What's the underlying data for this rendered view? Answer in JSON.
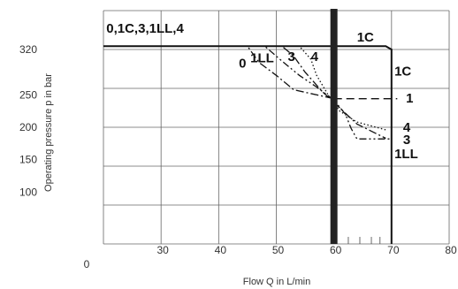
{
  "chart_data": {
    "type": "line",
    "xlabel": "Flow Q in L/min",
    "ylabel": "Operating pressure p in bar",
    "xlim": [
      20,
      80
    ],
    "ylim": [
      20,
      380
    ],
    "origin_label": "0",
    "x_ticks": [
      {
        "value": 30,
        "label": "30"
      },
      {
        "value": 40,
        "label": "40"
      },
      {
        "value": 50,
        "label": "50"
      },
      {
        "value": 60,
        "label": "60"
      },
      {
        "value": 70,
        "label": "70"
      },
      {
        "value": 80,
        "label": "80"
      }
    ],
    "y_ticks": [
      {
        "value": 100,
        "label": "100"
      },
      {
        "value": 150,
        "label": "150"
      },
      {
        "value": 200,
        "label": "200"
      },
      {
        "value": 250,
        "label": "250"
      },
      {
        "value": 320,
        "label": "320"
      }
    ],
    "grid": true,
    "vertical_marker": {
      "x": 60
    },
    "series": [
      {
        "name": "1C",
        "style": "solid",
        "points": [
          [
            20,
            325
          ],
          [
            69,
            325
          ],
          [
            70,
            320
          ],
          [
            70,
            20
          ]
        ]
      },
      {
        "name": "0",
        "style": "dashdot",
        "points": [
          [
            20,
            325
          ],
          [
            45,
            325
          ],
          [
            47,
            300
          ],
          [
            50,
            280
          ],
          [
            53,
            258
          ],
          [
            60,
            244
          ]
        ]
      },
      {
        "name": "1",
        "style": "dashed",
        "points": [
          [
            60,
            244
          ],
          [
            71,
            244
          ]
        ]
      },
      {
        "name": "1LL",
        "style": "dashdotdot",
        "points": [
          [
            20,
            325
          ],
          [
            48,
            325
          ],
          [
            51,
            302
          ],
          [
            54,
            280
          ],
          [
            57,
            262
          ],
          [
            60,
            242
          ],
          [
            62,
            220
          ],
          [
            63,
            198
          ],
          [
            64,
            182
          ],
          [
            70,
            182
          ]
        ]
      },
      {
        "name": "3",
        "style": "dashdot",
        "points": [
          [
            20,
            325
          ],
          [
            51,
            325
          ],
          [
            53,
            310
          ],
          [
            55,
            285
          ],
          [
            58,
            255
          ],
          [
            61,
            230
          ],
          [
            64,
            205
          ],
          [
            69,
            183
          ]
        ]
      },
      {
        "name": "4",
        "style": "dotted",
        "points": [
          [
            20,
            325
          ],
          [
            54,
            325
          ],
          [
            56,
            305
          ],
          [
            57,
            280
          ],
          [
            59,
            250
          ],
          [
            61,
            225
          ],
          [
            64,
            208
          ],
          [
            69,
            196
          ]
        ]
      }
    ],
    "annotations": [
      {
        "text": "0,1C,3,1LL,4",
        "x": 20.5,
        "y": 346
      },
      {
        "text": "1C",
        "x": 64,
        "y": 332
      },
      {
        "text": "1C",
        "x": 70.5,
        "y": 280
      },
      {
        "text": "0",
        "x": 43.5,
        "y": 292
      },
      {
        "text": "1LL",
        "x": 45.5,
        "y": 300
      },
      {
        "text": "3",
        "x": 52,
        "y": 302
      },
      {
        "text": "4",
        "x": 56,
        "y": 302
      },
      {
        "text": "1",
        "x": 72.5,
        "y": 238
      },
      {
        "text": "4",
        "x": 72,
        "y": 193
      },
      {
        "text": "3",
        "x": 72,
        "y": 174
      },
      {
        "text": "1LL",
        "x": 70.5,
        "y": 152
      }
    ]
  }
}
